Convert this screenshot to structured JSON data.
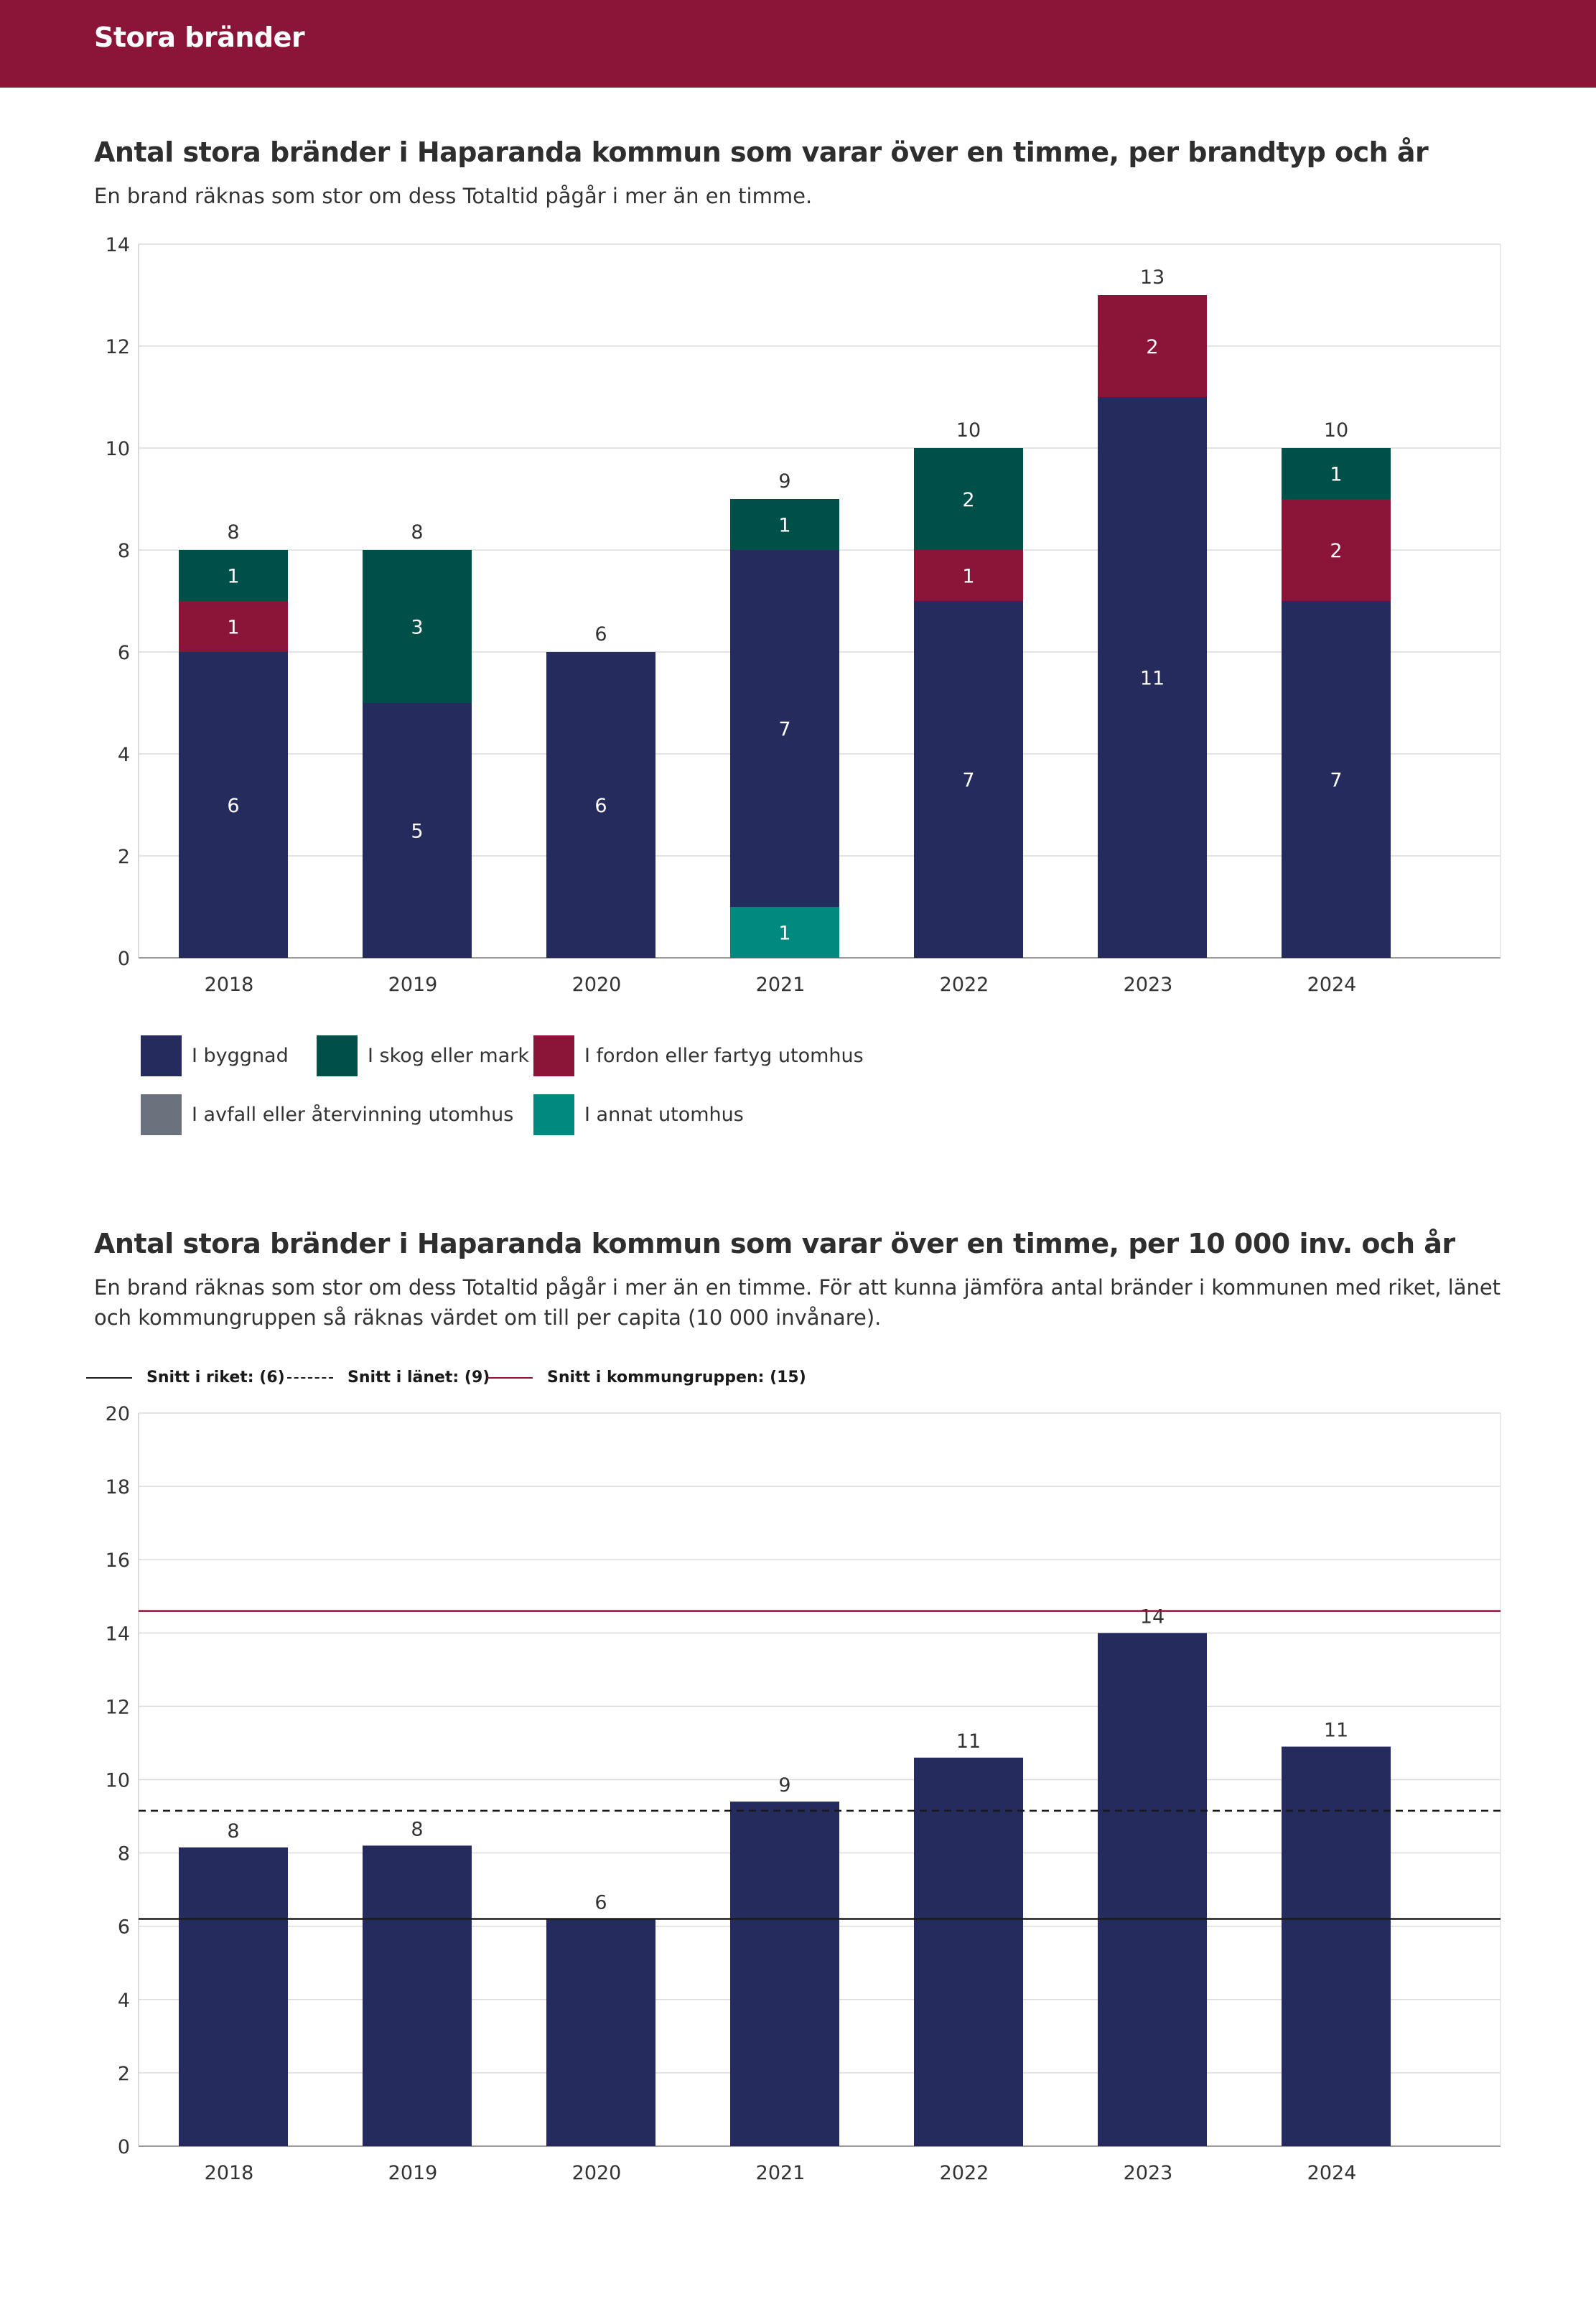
{
  "header": {
    "title": "Stora bränder"
  },
  "chart1": {
    "title": "Antal stora bränder i Haparanda kommun som varar över en timme, per brandtyp och år",
    "subtitle": "En brand räknas som stor om dess Totaltid pågår i mer än en timme.",
    "legend": [
      {
        "name": "I byggnad",
        "color": "#252b5c"
      },
      {
        "name": "I skog eller mark",
        "color": "#00504a"
      },
      {
        "name": "I fordon eller fartyg utomhus",
        "color": "#8b1538"
      },
      {
        "name": "I avfall eller återvinning utomhus",
        "color": "#6b717d"
      },
      {
        "name": "I annat utomhus",
        "color": "#008a7f"
      }
    ]
  },
  "chart2": {
    "title": "Antal stora bränder i Haparanda kommun som varar över en timme, per 10 000 inv. och år",
    "subtitle": "En brand räknas som stor om dess Totaltid pågår i mer än en timme. För att kunna jämföra antal bränder i kommunen med riket, länet och kommungruppen så räknas värdet om till per capita (10 000 invånare).",
    "reference_legend": [
      {
        "label": "Snitt i riket: (6)",
        "style": "solid",
        "color": "#1a1a1a"
      },
      {
        "label": "Snitt i länet: (9)",
        "style": "dashed",
        "color": "#1a1a1a"
      },
      {
        "label": "Snitt i kommungruppen: (15)",
        "style": "solid",
        "color": "#8b1538"
      }
    ]
  },
  "chart_data": [
    {
      "type": "bar",
      "stacked": true,
      "title": "Antal stora bränder i Haparanda kommun som varar över en timme, per brandtyp och år",
      "categories": [
        "2018",
        "2019",
        "2020",
        "2021",
        "2022",
        "2023",
        "2024"
      ],
      "series": [
        {
          "name": "I annat utomhus",
          "color": "#008a7f",
          "values": [
            0,
            0,
            0,
            1,
            0,
            0,
            0
          ]
        },
        {
          "name": "I avfall eller återvinning utomhus",
          "color": "#6b717d",
          "values": [
            0,
            0,
            0,
            0,
            0,
            0,
            0
          ]
        },
        {
          "name": "I byggnad",
          "color": "#252b5c",
          "values": [
            6,
            5,
            6,
            7,
            7,
            11,
            7
          ]
        },
        {
          "name": "I fordon eller fartyg utomhus",
          "color": "#8b1538",
          "values": [
            1,
            0,
            0,
            0,
            1,
            2,
            2
          ]
        },
        {
          "name": "I skog eller mark",
          "color": "#00504a",
          "values": [
            1,
            3,
            0,
            1,
            2,
            0,
            1
          ]
        }
      ],
      "totals": [
        8,
        8,
        6,
        9,
        10,
        13,
        10
      ],
      "yticks": [
        0,
        2,
        4,
        6,
        8,
        10,
        12,
        14
      ],
      "ylim": [
        0,
        14
      ],
      "grid": true
    },
    {
      "type": "bar",
      "title": "Antal stora bränder i Haparanda kommun som varar över en timme, per 10 000 inv. och år",
      "categories": [
        "2018",
        "2019",
        "2020",
        "2021",
        "2022",
        "2023",
        "2024"
      ],
      "values": [
        8.15,
        8.2,
        6.2,
        9.4,
        10.6,
        14.0,
        10.9
      ],
      "labels": [
        "8",
        "8",
        "6",
        "9",
        "11",
        "14",
        "11"
      ],
      "color": "#252b5c",
      "reference_lines": [
        {
          "name": "Snitt i riket",
          "value": 6.2,
          "style": "solid",
          "color": "#1a1a1a"
        },
        {
          "name": "Snitt i länet",
          "value": 9.15,
          "style": "dashed",
          "color": "#1a1a1a"
        },
        {
          "name": "Snitt i kommungruppen",
          "value": 14.6,
          "style": "solid",
          "color": "#8b1538"
        }
      ],
      "yticks": [
        0,
        2,
        4,
        6,
        8,
        10,
        12,
        14,
        16,
        18,
        20
      ],
      "ylim": [
        0,
        20
      ],
      "grid": true
    }
  ]
}
